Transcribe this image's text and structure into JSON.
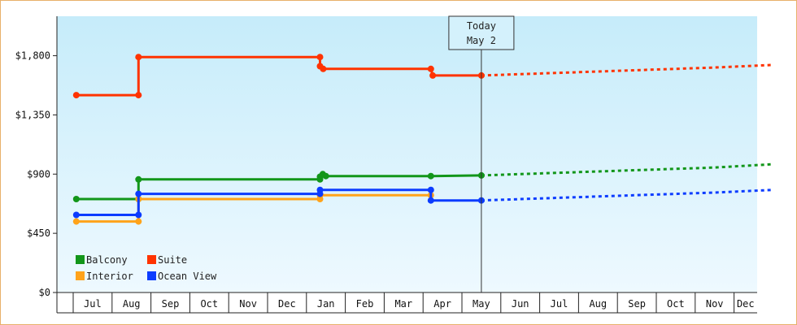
{
  "chart_data": {
    "type": "line",
    "y_ticks": [
      "$0",
      "$450",
      "$900",
      "$1,350",
      "$1,800"
    ],
    "ylim": [
      0,
      2100
    ],
    "months": [
      "Jul",
      "Aug",
      "Sep",
      "Oct",
      "Nov",
      "Dec",
      "Jan",
      "Feb",
      "Mar",
      "Apr",
      "May",
      "Jun",
      "Jul",
      "Aug",
      "Sep",
      "Oct",
      "Nov",
      "Dec"
    ],
    "today": {
      "line1": "Today",
      "line2": "May 2",
      "x": 10.0
    },
    "legend": [
      "Balcony",
      "Suite",
      "Interior",
      "Ocean View"
    ],
    "series": [
      {
        "name": "Balcony",
        "color": "#12961a",
        "history": [
          [
            -0.42,
            710
          ],
          [
            1.18,
            710
          ],
          [
            1.18,
            860
          ],
          [
            5.85,
            860
          ],
          [
            5.85,
            880
          ],
          [
            5.92,
            900
          ],
          [
            6.0,
            885
          ],
          [
            8.7,
            885
          ],
          [
            10.0,
            890
          ]
        ],
        "projection": [
          [
            10.0,
            890
          ],
          [
            13.0,
            920
          ],
          [
            16.0,
            950
          ],
          [
            17.5,
            975
          ]
        ]
      },
      {
        "name": "Suite",
        "color": "#ff3300",
        "history": [
          [
            -0.42,
            1500
          ],
          [
            1.18,
            1500
          ],
          [
            1.18,
            1790
          ],
          [
            5.85,
            1790
          ],
          [
            5.85,
            1720
          ],
          [
            5.93,
            1700
          ],
          [
            8.7,
            1700
          ],
          [
            8.75,
            1650
          ],
          [
            10.0,
            1650
          ]
        ],
        "projection": [
          [
            10.0,
            1650
          ],
          [
            13.0,
            1680
          ],
          [
            16.0,
            1710
          ],
          [
            17.5,
            1730
          ]
        ]
      },
      {
        "name": "Interior",
        "color": "#ffa31a",
        "history": [
          [
            -0.42,
            540
          ],
          [
            1.18,
            540
          ],
          [
            1.18,
            710
          ],
          [
            5.85,
            710
          ],
          [
            5.85,
            740
          ],
          [
            8.7,
            740
          ]
        ],
        "projection": []
      },
      {
        "name": "Ocean View",
        "color": "#0c3cff",
        "history": [
          [
            -0.42,
            590
          ],
          [
            1.18,
            590
          ],
          [
            1.18,
            750
          ],
          [
            5.85,
            750
          ],
          [
            5.85,
            780
          ],
          [
            8.7,
            780
          ],
          [
            8.7,
            700
          ],
          [
            10.0,
            700
          ]
        ],
        "projection": [
          [
            10.0,
            700
          ],
          [
            13.0,
            730
          ],
          [
            16.0,
            760
          ],
          [
            17.5,
            780
          ]
        ]
      }
    ]
  }
}
